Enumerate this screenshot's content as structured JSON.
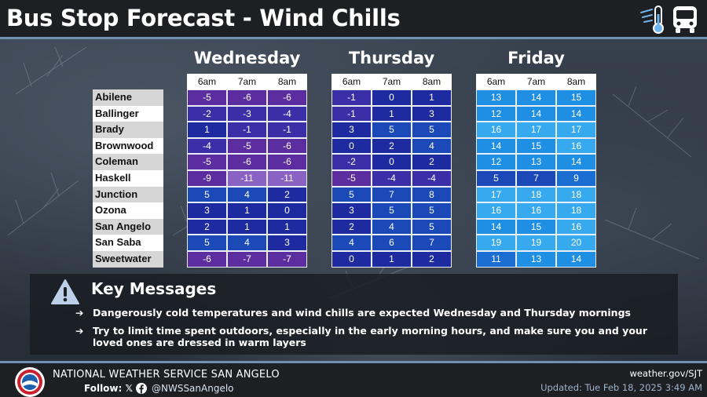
{
  "title": "Bus Stop Forecast - Wind Chills",
  "header_icons": [
    "thermometer-wind-icon",
    "bus-icon"
  ],
  "times": [
    "6am",
    "7am",
    "8am"
  ],
  "cities": [
    "Abilene",
    "Ballinger",
    "Brady",
    "Brownwood",
    "Coleman",
    "Haskell",
    "Junction",
    "Ozona",
    "San Angelo",
    "San Saba",
    "Sweetwater"
  ],
  "days": [
    {
      "name": "Wednesday",
      "values": [
        [
          "-5",
          "-6",
          "-6"
        ],
        [
          "-2",
          "-3",
          "-4"
        ],
        [
          "1",
          "-1",
          "-1"
        ],
        [
          "-4",
          "-5",
          "-6"
        ],
        [
          "-5",
          "-6",
          "-6"
        ],
        [
          "-9",
          "-11",
          "-11"
        ],
        [
          "5",
          "4",
          "2"
        ],
        [
          "3",
          "1",
          "0"
        ],
        [
          "2",
          "1",
          "1"
        ],
        [
          "5",
          "4",
          "3"
        ],
        [
          "-6",
          "-7",
          "-7"
        ]
      ]
    },
    {
      "name": "Thursday",
      "values": [
        [
          "-1",
          "0",
          "1"
        ],
        [
          "-1",
          "1",
          "3"
        ],
        [
          "3",
          "5",
          "5"
        ],
        [
          "0",
          "2",
          "4"
        ],
        [
          "-2",
          "0",
          "2"
        ],
        [
          "-5",
          "-4",
          "-4"
        ],
        [
          "5",
          "7",
          "8"
        ],
        [
          "3",
          "5",
          "5"
        ],
        [
          "2",
          "4",
          "5"
        ],
        [
          "4",
          "6",
          "7"
        ],
        [
          "0",
          "1",
          "2"
        ]
      ]
    },
    {
      "name": "Friday",
      "values": [
        [
          "13",
          "14",
          "15"
        ],
        [
          "12",
          "14",
          "14"
        ],
        [
          "16",
          "17",
          "17"
        ],
        [
          "14",
          "15",
          "16"
        ],
        [
          "12",
          "13",
          "14"
        ],
        [
          "5",
          "7",
          "9"
        ],
        [
          "17",
          "18",
          "18"
        ],
        [
          "16",
          "16",
          "18"
        ],
        [
          "14",
          "15",
          "16"
        ],
        [
          "19",
          "19",
          "20"
        ],
        [
          "11",
          "13",
          "14"
        ]
      ]
    }
  ],
  "color_scale": [
    {
      "max": -10,
      "color": "#8a62c4"
    },
    {
      "max": -5,
      "color": "#5b2d9e"
    },
    {
      "max": -1,
      "color": "#3a2fa6"
    },
    {
      "max": 3,
      "color": "#1d2aa0"
    },
    {
      "max": 8,
      "color": "#1b49b8"
    },
    {
      "max": 11,
      "color": "#1a6dd1"
    },
    {
      "max": 15,
      "color": "#1f8fe4"
    },
    {
      "max": 30,
      "color": "#36a9ef"
    }
  ],
  "key_messages": {
    "title": "Key Messages",
    "arrow": "➔",
    "bullets": [
      "Dangerously cold temperatures and wind chills are expected Wednesday and Thursday mornings",
      "Try to limit time spent outdoors, especially in the early morning hours, and make sure you and your loved ones are dressed in warm layers"
    ]
  },
  "footer": {
    "office": "NATIONAL WEATHER SERVICE SAN ANGELO",
    "follow_label": "Follow:",
    "x_glyph": "𝕏",
    "handle": "@NWSSanAngelo",
    "site": "weather.gov/SJT",
    "updated": "Updated: Tue Feb 18, 2025 3:49 AM"
  }
}
